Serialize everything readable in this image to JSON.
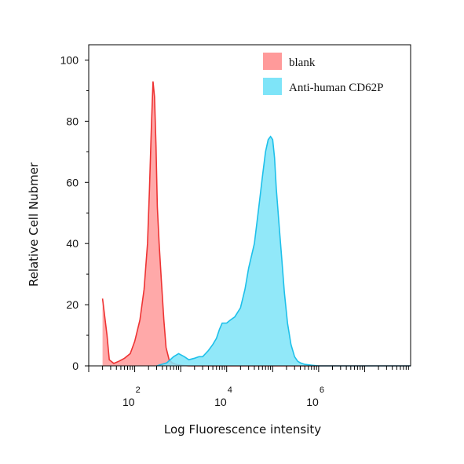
{
  "chart_data": {
    "type": "area",
    "title": "",
    "xlabel": "Log Fluorescence intensity",
    "ylabel": "Relative Cell Nubmer",
    "xscale": "log",
    "xlim": [
      10,
      100000000.0
    ],
    "ylim": [
      0,
      105
    ],
    "yticks": [
      0,
      20,
      40,
      60,
      80,
      100
    ],
    "xticks": [
      {
        "value": 100,
        "base": "10",
        "exp": "2"
      },
      {
        "value": 10000,
        "base": "10",
        "exp": "4"
      },
      {
        "value": 1000000,
        "base": "10",
        "exp": "6"
      }
    ],
    "legend_position": "top-right",
    "grid": false,
    "series": [
      {
        "name": "blank",
        "color": "#ff9a9a",
        "edge_color": "#ee3333",
        "x": [
          20,
          25,
          28,
          35,
          45,
          60,
          80,
          100,
          130,
          160,
          190,
          210,
          230,
          250,
          270,
          290,
          310,
          340,
          380,
          430,
          480,
          560,
          650,
          800,
          1000,
          1500,
          3000,
          100000.0,
          100000000.0
        ],
        "y": [
          22,
          10,
          2,
          0.8,
          1.5,
          2.5,
          4,
          8,
          15,
          25,
          40,
          58,
          78,
          93,
          88,
          72,
          52,
          40,
          28,
          15,
          6,
          2,
          1,
          0.5,
          0.2,
          0,
          0,
          0,
          0
        ]
      },
      {
        "name": "Anti-human CD62P",
        "color": "#7ee4f8",
        "edge_color": "#1ec0ea",
        "x": [
          300,
          500,
          700,
          900,
          1200,
          1500,
          2000,
          2500,
          3000,
          4000,
          5000,
          6000,
          7000,
          8000,
          10000,
          12000,
          15000,
          20000,
          25000,
          30000,
          40000,
          50000,
          60000,
          70000,
          80000,
          90000,
          100000,
          110000,
          120000,
          140000,
          160000,
          180000,
          210000,
          250000,
          300000,
          350000,
          400000,
          500000,
          700000,
          1000000,
          100000000.0
        ],
        "y": [
          0,
          1,
          3,
          4,
          3,
          2,
          2.5,
          3,
          3,
          5,
          7,
          9,
          12,
          14,
          14,
          15,
          16,
          19,
          25,
          32,
          40,
          52,
          62,
          70,
          74,
          75,
          74,
          68,
          58,
          45,
          34,
          24,
          14,
          7,
          3,
          1.5,
          1,
          0.5,
          0.2,
          0,
          0
        ]
      }
    ]
  }
}
